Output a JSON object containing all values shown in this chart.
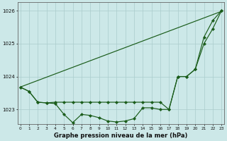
{
  "background_color": "#cce8e8",
  "grid_color": "#aacccc",
  "line_color": "#1a5c1a",
  "marker_color": "#1a5c1a",
  "title": "Graphe pression niveau de la mer (hPa)",
  "xlabel_hours": [
    0,
    1,
    2,
    3,
    4,
    5,
    6,
    7,
    8,
    9,
    10,
    11,
    12,
    13,
    14,
    15,
    16,
    17,
    18,
    19,
    20,
    21,
    22,
    23
  ],
  "ylim": [
    1022.55,
    1026.25
  ],
  "yticks": [
    1023,
    1024,
    1025,
    1026
  ],
  "series_trend": [
    1023.68,
    1023.78,
    1023.88,
    1023.98,
    1024.08,
    1024.18,
    1024.28,
    1024.38,
    1024.48,
    1024.58,
    1024.68,
    1024.78,
    1024.88,
    1024.98,
    1025.08,
    1025.18,
    1025.28,
    1025.38,
    1025.48,
    1025.58,
    1025.68,
    1025.78,
    1025.88,
    1025.98
  ],
  "series_mid": [
    1023.68,
    1023.55,
    1023.22,
    1023.2,
    1023.22,
    1023.22,
    1023.22,
    1023.22,
    1023.22,
    1023.22,
    1023.22,
    1023.22,
    1023.22,
    1023.22,
    1023.22,
    1023.22,
    1023.22,
    1023.0,
    1024.0,
    1024.0,
    1024.22,
    1025.0,
    1025.45,
    1026.0
  ],
  "series_dip": [
    1023.68,
    1023.55,
    1023.22,
    1023.2,
    1023.18,
    1022.85,
    1022.6,
    1022.85,
    1022.82,
    1022.75,
    1022.65,
    1022.62,
    1022.65,
    1022.72,
    1023.05,
    1023.05,
    1023.0,
    1023.0,
    1024.0,
    1024.0,
    1024.22,
    1025.2,
    1025.7,
    1026.0
  ]
}
